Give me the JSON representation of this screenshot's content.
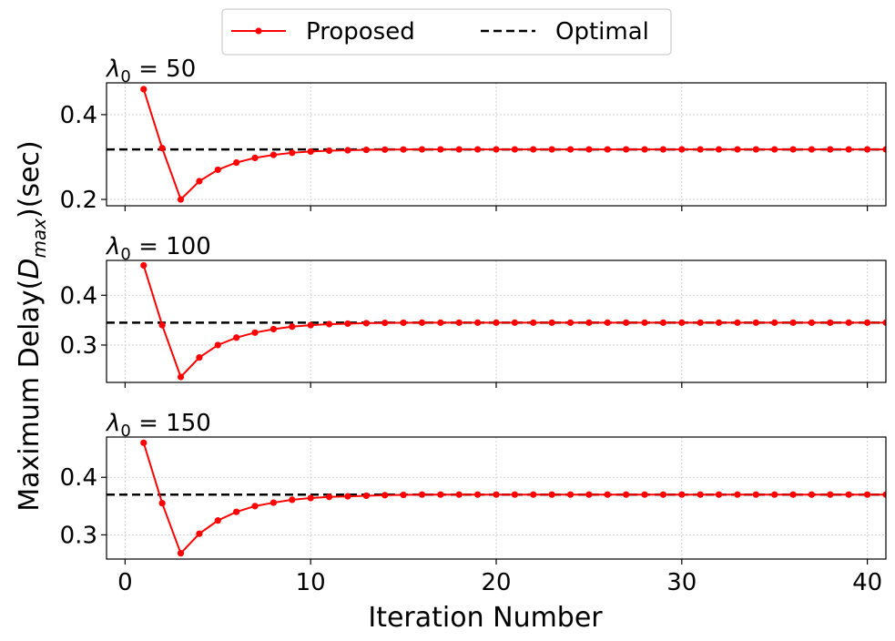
{
  "chart_data": {
    "type": "line",
    "xlabel": "Iteration Number",
    "ylabel": "Maximum Delay(Dmax)(sec)",
    "ylabel_parts": {
      "prefix": "Maximum Delay(",
      "symbol": "D",
      "subscript": "max",
      "suffix": ")(sec)"
    },
    "xlim": [
      -1,
      41
    ],
    "xticks": [
      0,
      10,
      20,
      30,
      40
    ],
    "grid": true,
    "legend_placement": "top-center",
    "legend": [
      {
        "name": "Proposed",
        "color": "#ff0000",
        "style": "solid-marker"
      },
      {
        "name": "Optimal",
        "color": "#000000",
        "style": "dashed"
      }
    ],
    "panels": [
      {
        "title": "λ0 = 50",
        "title_parts": {
          "symbol": "λ",
          "subscript": "0",
          "value": " = 50"
        },
        "ylim": [
          0.185,
          0.475
        ],
        "yticks": [
          0.2,
          0.4
        ],
        "ytick_labels": [
          "0.2",
          "0.4"
        ],
        "optimal": 0.318,
        "series": [
          {
            "name": "Proposed",
            "x": [
              1,
              2,
              3,
              4,
              5,
              6,
              7,
              8,
              9,
              10,
              11,
              12,
              13,
              14,
              15,
              16,
              17,
              18,
              19,
              20,
              21,
              22,
              23,
              24,
              25,
              26,
              27,
              28,
              29,
              30,
              31,
              32,
              33,
              34,
              35,
              36,
              37,
              38,
              39,
              40,
              41
            ],
            "y": [
              0.46,
              0.321,
              0.2,
              0.243,
              0.27,
              0.287,
              0.298,
              0.305,
              0.31,
              0.313,
              0.315,
              0.316,
              0.317,
              0.3175,
              0.3178,
              0.318,
              0.318,
              0.318,
              0.318,
              0.318,
              0.318,
              0.318,
              0.318,
              0.318,
              0.318,
              0.318,
              0.318,
              0.318,
              0.318,
              0.318,
              0.318,
              0.318,
              0.318,
              0.318,
              0.318,
              0.318,
              0.318,
              0.318,
              0.318,
              0.318,
              0.318
            ]
          }
        ]
      },
      {
        "title": "λ0 = 100",
        "title_parts": {
          "symbol": "λ",
          "subscript": "0",
          "value": " = 100"
        },
        "ylim": [
          0.225,
          0.47
        ],
        "yticks": [
          0.3,
          0.4
        ],
        "ytick_labels": [
          "0.3",
          "0.4"
        ],
        "optimal": 0.345,
        "series": [
          {
            "name": "Proposed",
            "x": [
              1,
              2,
              3,
              4,
              5,
              6,
              7,
              8,
              9,
              10,
              11,
              12,
              13,
              14,
              15,
              16,
              17,
              18,
              19,
              20,
              21,
              22,
              23,
              24,
              25,
              26,
              27,
              28,
              29,
              30,
              31,
              32,
              33,
              34,
              35,
              36,
              37,
              38,
              39,
              40,
              41
            ],
            "y": [
              0.46,
              0.34,
              0.236,
              0.275,
              0.3,
              0.315,
              0.325,
              0.332,
              0.337,
              0.34,
              0.342,
              0.343,
              0.344,
              0.3445,
              0.3448,
              0.345,
              0.345,
              0.345,
              0.345,
              0.345,
              0.345,
              0.345,
              0.345,
              0.345,
              0.345,
              0.345,
              0.345,
              0.345,
              0.345,
              0.345,
              0.345,
              0.345,
              0.345,
              0.345,
              0.345,
              0.345,
              0.345,
              0.345,
              0.345,
              0.345,
              0.345
            ]
          }
        ]
      },
      {
        "title": "λ0 = 150",
        "title_parts": {
          "symbol": "λ",
          "subscript": "0",
          "value": " = 150"
        },
        "ylim": [
          0.258,
          0.47
        ],
        "yticks": [
          0.3,
          0.4
        ],
        "ytick_labels": [
          "0.3",
          "0.4"
        ],
        "optimal": 0.37,
        "series": [
          {
            "name": "Proposed",
            "x": [
              1,
              2,
              3,
              4,
              5,
              6,
              7,
              8,
              9,
              10,
              11,
              12,
              13,
              14,
              15,
              16,
              17,
              18,
              19,
              20,
              21,
              22,
              23,
              24,
              25,
              26,
              27,
              28,
              29,
              30,
              31,
              32,
              33,
              34,
              35,
              36,
              37,
              38,
              39,
              40,
              41
            ],
            "y": [
              0.46,
              0.355,
              0.268,
              0.302,
              0.325,
              0.34,
              0.35,
              0.356,
              0.361,
              0.364,
              0.366,
              0.367,
              0.368,
              0.369,
              0.3695,
              0.37,
              0.37,
              0.37,
              0.37,
              0.37,
              0.37,
              0.37,
              0.37,
              0.37,
              0.37,
              0.37,
              0.37,
              0.37,
              0.37,
              0.37,
              0.37,
              0.37,
              0.37,
              0.37,
              0.37,
              0.37,
              0.37,
              0.37,
              0.37,
              0.37,
              0.37
            ]
          }
        ]
      }
    ]
  },
  "colors": {
    "proposed": "#ff0000",
    "optimal": "#000000",
    "grid": "#d0d0d0"
  }
}
